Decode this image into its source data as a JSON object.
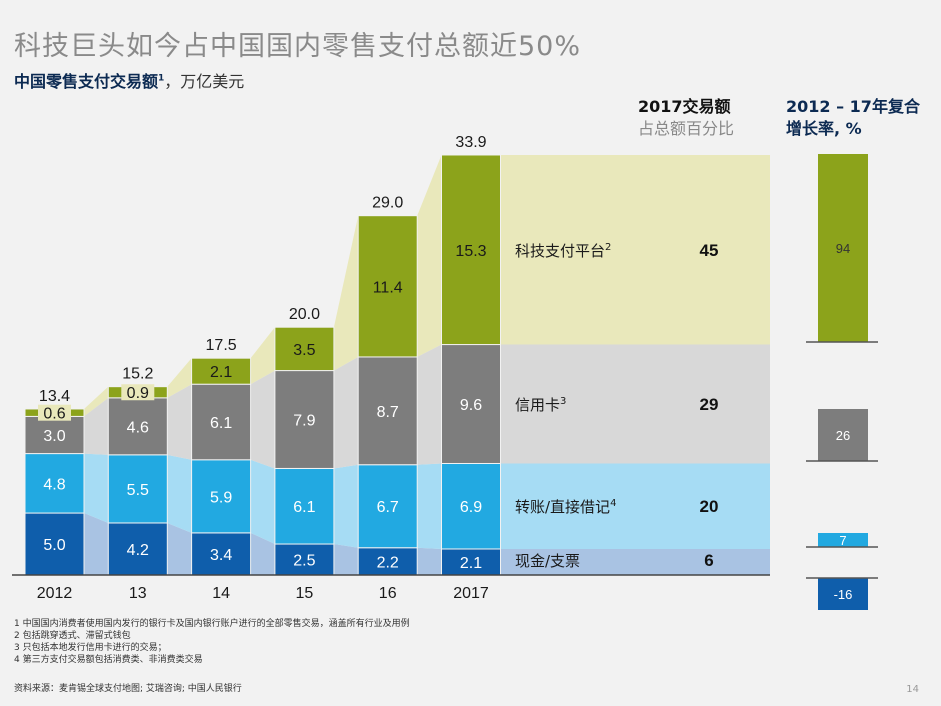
{
  "title": "科技巨头如今占中国国内零售支付总额近50%",
  "subtitle": {
    "label": "中国零售支付交易额",
    "sup": "1",
    "unit": "，万亿美元"
  },
  "share_header": {
    "line1": "2017交易额",
    "line2": "占总额百分比"
  },
  "cagr_header": {
    "line1": "2012 – 17年复合",
    "line2": "增长率, %"
  },
  "chart_data": {
    "type": "bar",
    "stacked": true,
    "categories": [
      "2012",
      "13",
      "14",
      "15",
      "16",
      "2017"
    ],
    "totals": [
      "13.4",
      "15.2",
      "17.5",
      "20.0",
      "29.0",
      "33.9"
    ],
    "series": [
      {
        "name": "现金/支票",
        "sup": "",
        "color": "#0f5eab",
        "band": "#a9c3e3",
        "label_color": "#ffffff",
        "values": [
          5.0,
          4.2,
          3.4,
          2.5,
          2.2,
          2.1
        ],
        "share_2017": "6",
        "cagr": -16,
        "cagr_color": "#0f5eab"
      },
      {
        "name": "转账/直接借记",
        "sup": "4",
        "color": "#22a9e1",
        "band": "#a6dcf4",
        "label_color": "#ffffff",
        "values": [
          4.8,
          5.5,
          5.9,
          6.1,
          6.7,
          6.9
        ],
        "share_2017": "20",
        "cagr": 7,
        "cagr_color": "#22a9e1"
      },
      {
        "name": "信用卡",
        "sup": "3",
        "color": "#7d7d7d",
        "band": "#d8d8d8",
        "label_color": "#ffffff",
        "values": [
          3.0,
          4.6,
          6.1,
          7.9,
          8.7,
          9.6
        ],
        "share_2017": "29",
        "cagr": 26,
        "cagr_color": "#7d7d7d"
      },
      {
        "name": "科技支付平台",
        "sup": "2",
        "color": "#8ca31b",
        "band": "#e9e8bb",
        "label_color": "#1a1a1a",
        "values": [
          0.6,
          0.9,
          2.1,
          3.5,
          11.4,
          15.3
        ],
        "share_2017": "45",
        "cagr": 94,
        "cagr_color": "#8ca31b"
      }
    ]
  },
  "footnotes": [
    "1 中国国内消费者使用国内发行的银行卡及国内银行账户进行的全部零售交易，涵盖所有行业及用例",
    "2 包括跳穿透式、滞留式钱包",
    "3 只包括本地发行信用卡进行的交易；",
    "4 第三方支付交易额包括消费类、非消费类交易"
  ],
  "source": "资料来源：麦肯锡全球支付地图; 艾瑞咨询; 中国人民银行",
  "page_number": "14"
}
